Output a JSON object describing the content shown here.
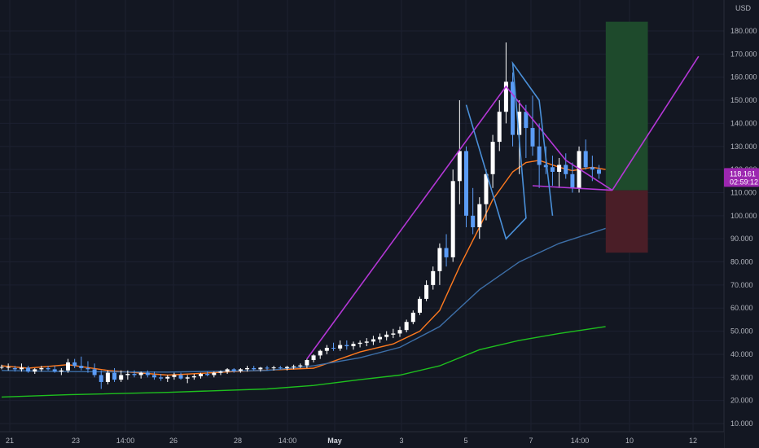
{
  "chart_data": {
    "type": "candlestick",
    "currency": "USD",
    "y_axis": {
      "ticks": [
        10,
        20,
        30,
        40,
        50,
        60,
        70,
        80,
        90,
        100,
        110,
        120,
        130,
        140,
        150,
        160,
        170,
        180
      ],
      "tick_labels": [
        "10.000",
        "20.000",
        "30.000",
        "40.000",
        "50.000",
        "60.000",
        "70.000",
        "80.000",
        "90.000",
        "100.000",
        "110.000",
        "120.000",
        "130.000",
        "140.000",
        "150.000",
        "160.000",
        "170.000",
        "180.000"
      ],
      "range": [
        5,
        190
      ]
    },
    "x_axis": {
      "ticks": [
        {
          "label": "21",
          "bold": false
        },
        {
          "label": "23",
          "bold": false
        },
        {
          "label": "14:00",
          "bold": false
        },
        {
          "label": "26",
          "bold": false
        },
        {
          "label": "28",
          "bold": false
        },
        {
          "label": "14:00",
          "bold": false
        },
        {
          "label": "May",
          "bold": true
        },
        {
          "label": "3",
          "bold": false
        },
        {
          "label": "5",
          "bold": false
        },
        {
          "label": "7",
          "bold": false
        },
        {
          "label": "14:00",
          "bold": false
        },
        {
          "label": "10",
          "bold": false
        },
        {
          "label": "12",
          "bold": false
        }
      ]
    },
    "last_price": {
      "value": 118.161,
      "label": "118.161",
      "countdown": "02:59:12",
      "color": "#9c27b0"
    },
    "candles": [
      [
        34.5,
        35.5,
        33.5,
        34.5
      ],
      [
        34.5,
        36,
        33,
        34.5
      ],
      [
        34,
        35,
        32.5,
        33.5
      ],
      [
        33.5,
        36,
        32.5,
        34.2
      ],
      [
        34.2,
        35,
        32,
        32.5
      ],
      [
        32.5,
        34,
        31.5,
        33.5
      ],
      [
        33.5,
        35,
        32.5,
        34
      ],
      [
        34,
        35,
        33,
        33.5
      ],
      [
        33.5,
        35,
        32,
        32.5
      ],
      [
        32.5,
        34,
        31,
        33
      ],
      [
        33,
        38,
        32,
        36.5
      ],
      [
        36.5,
        38,
        34,
        35
      ],
      [
        35,
        39,
        33,
        34
      ],
      [
        34,
        37,
        32,
        33.5
      ],
      [
        33.5,
        36,
        30,
        31
      ],
      [
        31,
        33,
        25,
        28
      ],
      [
        28,
        33,
        27,
        32
      ],
      [
        32,
        34,
        28,
        29
      ],
      [
        29,
        33,
        28,
        31
      ],
      [
        31,
        33,
        29,
        31.5
      ],
      [
        31.5,
        33,
        30,
        31
      ],
      [
        31,
        32.5,
        29.5,
        32
      ],
      [
        32,
        33,
        30,
        31
      ],
      [
        31,
        32.5,
        29,
        30
      ],
      [
        30,
        31.5,
        28.5,
        29.5
      ],
      [
        29.5,
        31,
        28,
        30.2
      ],
      [
        30.2,
        32,
        29,
        31
      ],
      [
        31,
        32,
        29,
        29.5
      ],
      [
        29.5,
        31,
        27.5,
        30
      ],
      [
        30,
        31.5,
        29,
        30.5
      ],
      [
        30.5,
        32,
        29.5,
        31.5
      ],
      [
        31.5,
        32.5,
        30.5,
        31
      ],
      [
        31,
        32.5,
        30,
        32
      ],
      [
        32,
        33,
        31,
        32.5
      ],
      [
        32.5,
        34,
        31.5,
        33.5
      ],
      [
        33.5,
        34,
        32,
        32.8
      ],
      [
        32.8,
        34,
        32,
        33.5
      ],
      [
        33.5,
        35,
        32.5,
        34
      ],
      [
        34,
        35,
        33,
        33.5
      ],
      [
        33.5,
        34.5,
        32.5,
        34.2
      ],
      [
        34.2,
        35,
        33,
        34
      ],
      [
        34,
        35,
        33,
        34.3
      ],
      [
        34.3,
        35,
        33.5,
        34
      ],
      [
        34,
        35,
        33,
        34.5
      ],
      [
        34.5,
        35.5,
        33.5,
        34.8
      ],
      [
        34.8,
        36,
        34,
        35.2
      ],
      [
        35.2,
        38,
        34,
        37.5
      ],
      [
        37.5,
        40,
        36.5,
        39.5
      ],
      [
        39.5,
        42,
        38,
        41.5
      ],
      [
        41.5,
        44,
        40,
        42.8
      ],
      [
        42.8,
        45,
        41.5,
        42.5
      ],
      [
        42.5,
        46,
        41.5,
        44
      ],
      [
        44,
        46,
        42,
        43.5
      ],
      [
        43.5,
        45.5,
        42,
        44.5
      ],
      [
        44.5,
        46,
        43,
        45
      ],
      [
        45,
        47,
        43.5,
        45.5
      ],
      [
        45.5,
        48,
        44,
        46.5
      ],
      [
        46.5,
        49,
        45,
        47.5
      ],
      [
        47.5,
        50,
        46,
        48.5
      ],
      [
        48.5,
        51,
        47,
        49
      ],
      [
        49,
        52,
        47.5,
        50.5
      ],
      [
        50.5,
        55,
        49.5,
        54
      ],
      [
        54,
        59,
        53,
        58
      ],
      [
        58,
        65,
        57,
        64
      ],
      [
        64,
        72,
        63,
        70
      ],
      [
        70,
        78,
        68,
        76
      ],
      [
        76,
        88,
        70,
        86
      ],
      [
        86,
        92,
        78,
        82
      ],
      [
        82,
        120,
        80,
        115
      ],
      [
        115,
        150,
        105,
        128
      ],
      [
        128,
        130,
        95,
        100
      ],
      [
        100,
        112,
        92,
        95
      ],
      [
        95,
        108,
        90,
        105
      ],
      [
        105,
        120,
        98,
        118
      ],
      [
        118,
        135,
        112,
        132
      ],
      [
        132,
        150,
        128,
        145
      ],
      [
        145,
        175,
        140,
        158
      ],
      [
        158,
        162,
        130,
        135
      ],
      [
        135,
        150,
        118,
        145
      ],
      [
        145,
        148,
        125,
        138
      ],
      [
        138,
        152,
        126,
        130
      ],
      [
        130,
        140,
        112,
        122
      ],
      [
        122,
        130,
        118,
        121
      ],
      [
        121,
        126,
        113,
        119
      ],
      [
        119,
        125,
        112,
        122
      ],
      [
        122,
        127,
        116,
        118
      ],
      [
        118,
        123,
        110,
        112
      ],
      [
        112,
        130,
        110,
        128
      ],
      [
        128,
        133,
        120,
        121
      ],
      [
        121,
        126,
        115,
        120
      ],
      [
        120,
        122,
        116,
        118.161
      ]
    ],
    "moving_averages": [
      {
        "color": "#ff7a1f",
        "values": [
          [
            0,
            35
          ],
          [
            4,
            34
          ],
          [
            10,
            35.5
          ],
          [
            16,
            33
          ],
          [
            25,
            31
          ],
          [
            35,
            32.5
          ],
          [
            47,
            34
          ],
          [
            54,
            41
          ],
          [
            59,
            44.5
          ],
          [
            63,
            50
          ],
          [
            66,
            59
          ],
          [
            69,
            78
          ],
          [
            72,
            95
          ],
          [
            74,
            107
          ],
          [
            77,
            119
          ],
          [
            79,
            123
          ],
          [
            81,
            124
          ],
          [
            84,
            121
          ],
          [
            86,
            119.5
          ],
          [
            89,
            121
          ],
          [
            91,
            120
          ]
        ]
      },
      {
        "color": "#3d6fa8",
        "values": [
          [
            0,
            33
          ],
          [
            10,
            32.5
          ],
          [
            25,
            32.3
          ],
          [
            40,
            33
          ],
          [
            47,
            35
          ],
          [
            54,
            38.5
          ],
          [
            60,
            43
          ],
          [
            66,
            52
          ],
          [
            72,
            68
          ],
          [
            78,
            80
          ],
          [
            84,
            88
          ],
          [
            91,
            94.5
          ]
        ]
      },
      {
        "color": "#1ec01e",
        "values": [
          [
            0,
            21.5
          ],
          [
            10,
            22.5
          ],
          [
            25,
            23.5
          ],
          [
            40,
            25
          ],
          [
            47,
            26.5
          ],
          [
            54,
            29
          ],
          [
            60,
            31
          ],
          [
            66,
            35
          ],
          [
            72,
            42
          ],
          [
            78,
            46
          ],
          [
            84,
            49
          ],
          [
            91,
            52
          ]
        ]
      }
    ],
    "pattern_lines": [
      {
        "color": "#b437d6",
        "points": [
          [
            46,
            38
          ],
          [
            76,
            156
          ],
          [
            85,
            124
          ],
          [
            92,
            111
          ]
        ]
      },
      {
        "color": "#b437d6",
        "points": [
          [
            80,
            113
          ],
          [
            92,
            111
          ]
        ]
      },
      {
        "color": "#b437d6",
        "points": [
          [
            92,
            111
          ],
          [
            105,
            169
          ]
        ]
      },
      {
        "color": "#4a90d9",
        "points": [
          [
            70,
            148
          ],
          [
            76,
            90
          ],
          [
            79,
            99
          ],
          [
            77,
            166
          ],
          [
            81,
            150
          ],
          [
            83,
            100
          ]
        ]
      }
    ],
    "position": {
      "start_x": 92,
      "end_x": 97,
      "entry": 111,
      "target": 184,
      "stop": 84,
      "profit_color": "#1e4a2c",
      "loss_color": "#4a1e27"
    },
    "colors": {
      "up_body": "#ffffff",
      "down_body": "#5b9cf6",
      "up_wick": "#ffffff",
      "down_wick": "#5b9cf6",
      "background": "#131722",
      "axis_text": "#b2b5be"
    }
  }
}
